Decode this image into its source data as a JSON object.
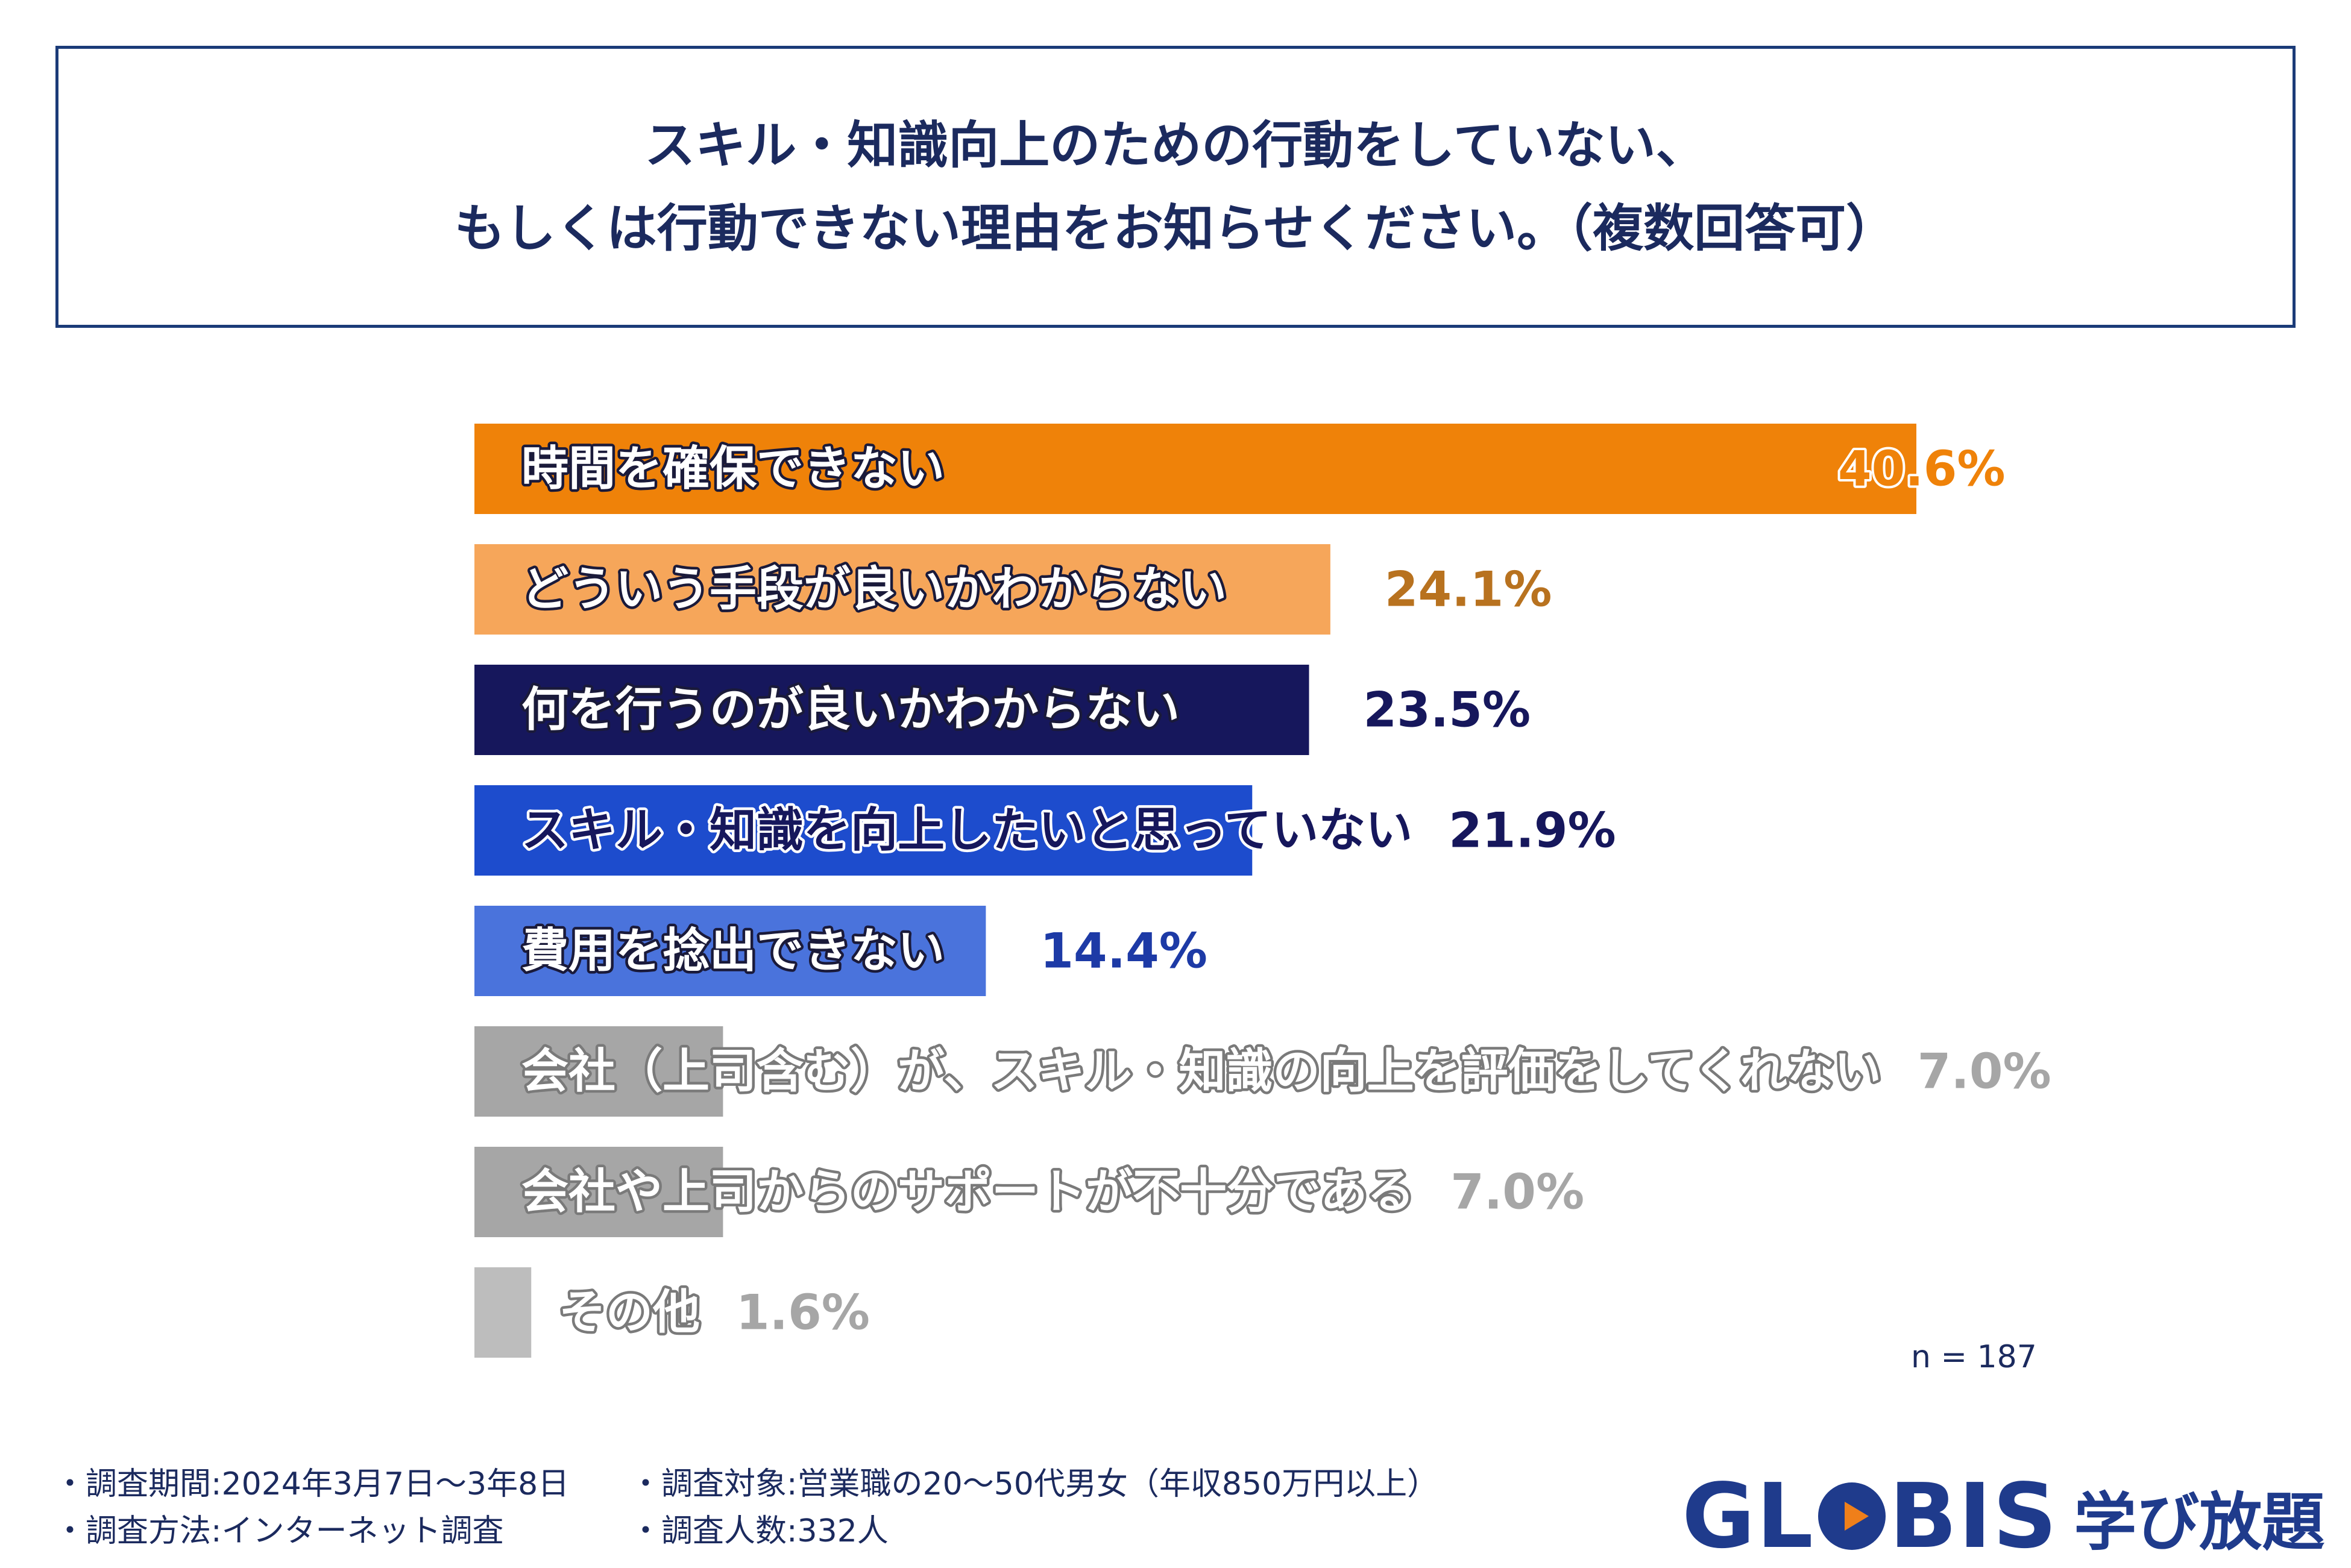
{
  "title": {
    "line1": "スキル・知識向上のための行動をしていない、",
    "line2": "もしくは行動できない理由をお知らせください。（複数回答可）"
  },
  "chart_data": {
    "type": "bar",
    "orientation": "horizontal",
    "categories": [
      "時間を確保できない",
      "どういう手段が良いかわからない",
      "何を行うのが良いかわからない",
      "スキル・知識を向上したいと思っていない",
      "費用を捻出できない",
      "会社（上司含む）が、スキル・知識の向上を評価をしてくれない",
      "会社や上司からのサポートが不十分である",
      "その他"
    ],
    "values": [
      40.6,
      24.1,
      23.5,
      21.9,
      14.4,
      7.0,
      7.0,
      1.6
    ],
    "value_labels": [
      "40.6%",
      "24.1%",
      "23.5%",
      "21.9%",
      "14.4%",
      "7.0%",
      "7.0%",
      "1.6%"
    ],
    "bar_colors": [
      "#ef8209",
      "#f6a65a",
      "#16175c",
      "#1d4ccd",
      "#4a73dc",
      "#a6a6a6",
      "#a6a6a6",
      "#bdbdbd"
    ],
    "value_colors": [
      "#ef8209",
      "#b8721f",
      "#16175c",
      "#16175c",
      "#1d3aa6",
      "#a6a6a6",
      "#a6a6a6",
      "#a6a6a6"
    ],
    "label_styles": [
      "white-dark",
      "white-dark",
      "white-dark",
      "dark-white",
      "white-dark",
      "white-gray",
      "white-gray",
      "white-gray"
    ],
    "grid": false,
    "legend": "none"
  },
  "sample_size": "n = 187",
  "notes": {
    "period": "・調査期間:2024年3月7日〜3年8日",
    "target": "・調査対象:営業職の20〜50代男女（年収850万円以上）",
    "method": "・調査方法:インターネット調査",
    "count": "・調査人数:332人"
  },
  "logo": {
    "brand_left": "GL",
    "brand_right": "BIS",
    "service": "学び放題",
    "colors": {
      "brand": "#1f3b8c",
      "accent": "#ef7f1a"
    }
  }
}
